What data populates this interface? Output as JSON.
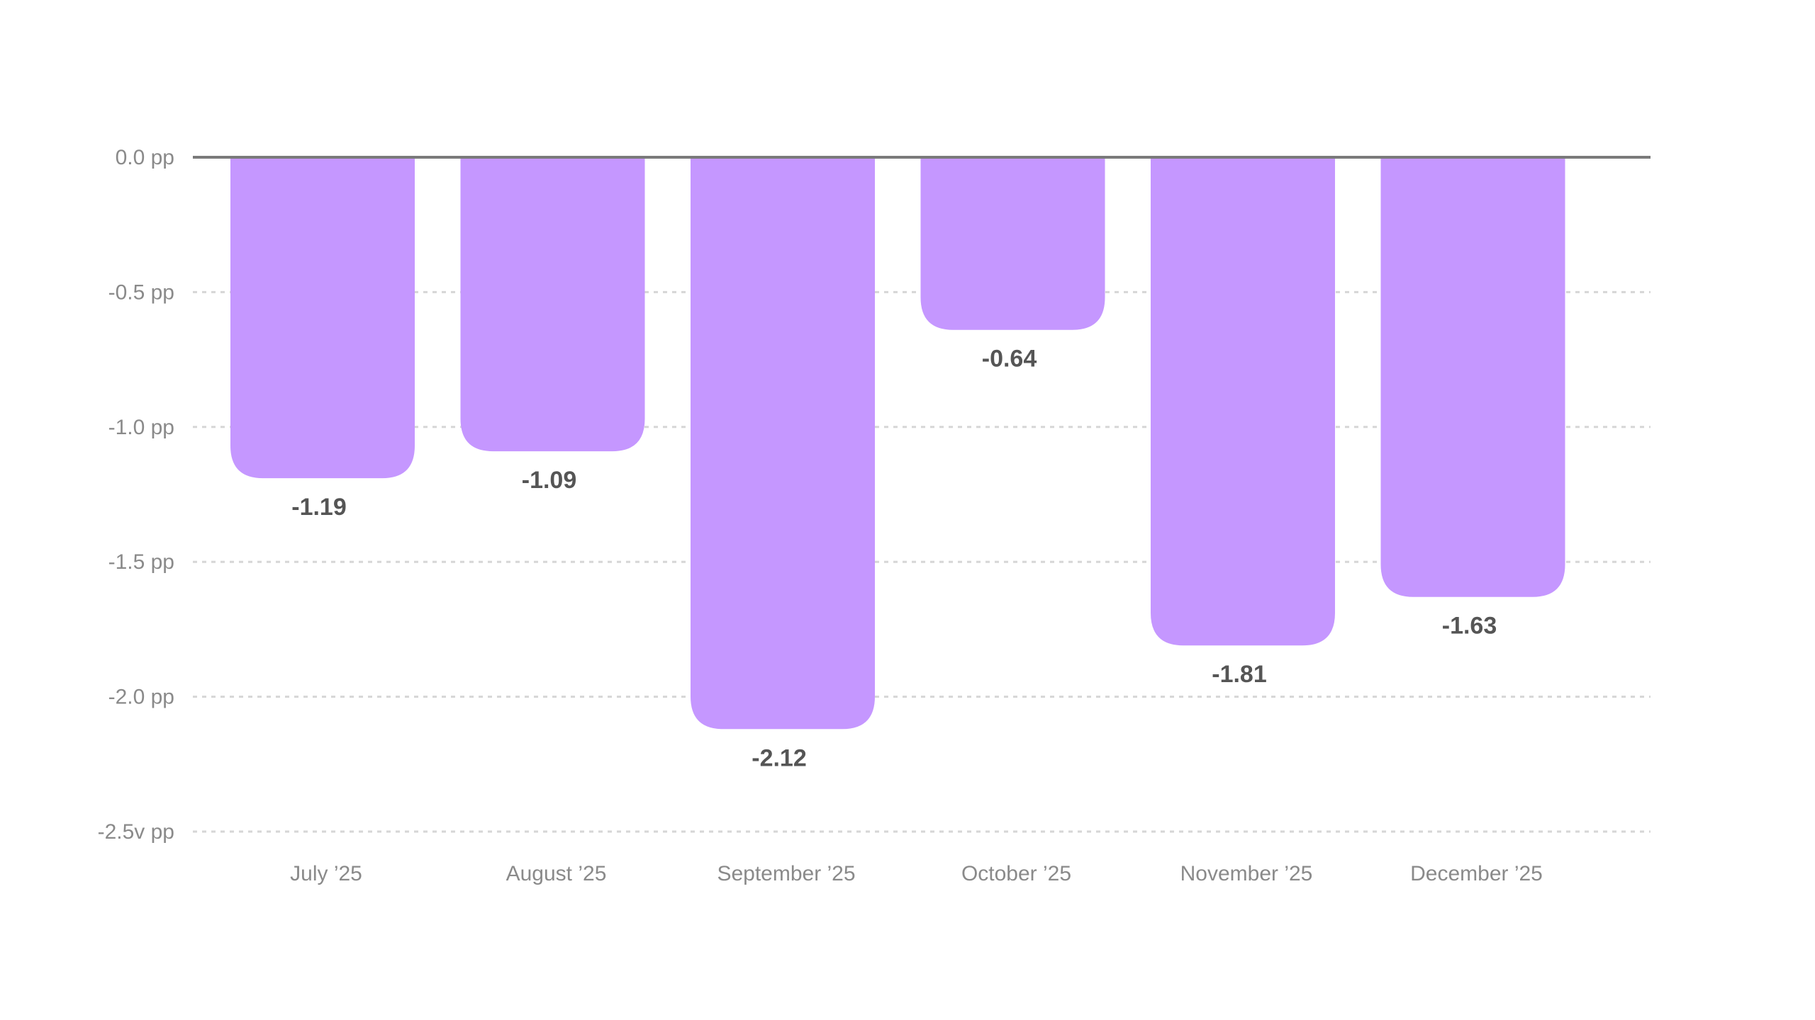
{
  "chart_data": {
    "type": "bar",
    "categories": [
      "July ’25",
      "August ’25",
      "September ’25",
      "October ’25",
      "November ’25",
      "December ’25"
    ],
    "values": [
      -1.19,
      -1.09,
      -2.12,
      -0.64,
      -1.81,
      -1.63
    ],
    "value_labels": [
      "-1.19",
      "-1.09",
      "-2.12",
      "-0.64",
      "-1.81",
      "-1.63"
    ],
    "ylim": [
      -2.5,
      0
    ],
    "y_ticks": [
      0,
      -0.5,
      -1.0,
      -1.5,
      -2.0,
      -2.5
    ],
    "y_tick_labels": [
      "0.0 pp",
      "-0.5 pp",
      "-1.0 pp",
      "-1.5 pp",
      "-2.0 pp",
      "-2.5v pp"
    ],
    "grid": true,
    "title": "",
    "xlabel": "",
    "ylabel": "",
    "colors": {
      "bar": "#c597ff",
      "zero_line": "#7a7a7a",
      "grid": "#d6d6d6"
    }
  }
}
